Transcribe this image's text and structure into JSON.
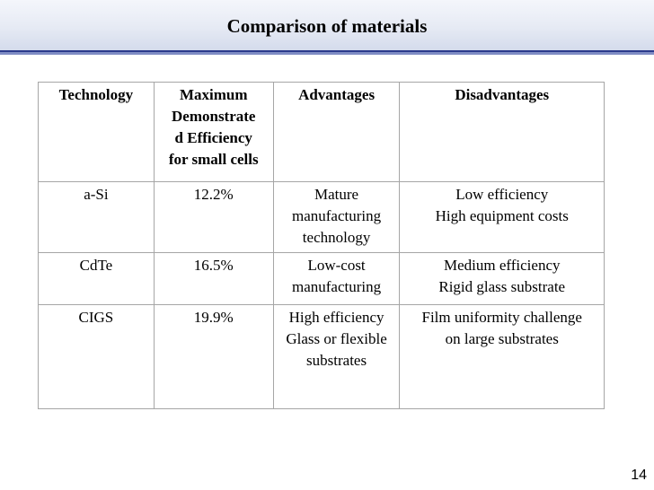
{
  "slide": {
    "title": "Comparison of materials",
    "page_number": "14"
  },
  "table": {
    "headers": [
      "Technology",
      [
        "Maximum",
        "Demonstrate",
        "d Efficiency",
        "for small cells"
      ],
      "Advantages",
      "Disadvantages"
    ],
    "rows": [
      {
        "technology": "a-Si",
        "efficiency": "12.2%",
        "advantages": [
          "Mature",
          "manufacturing",
          "technology"
        ],
        "disadvantages": [
          "Low efficiency",
          "High equipment costs"
        ]
      },
      {
        "technology": "CdTe",
        "efficiency": "16.5%",
        "advantages": [
          "Low-cost",
          "manufacturing"
        ],
        "disadvantages": [
          "Medium efficiency",
          "Rigid glass substrate"
        ]
      },
      {
        "technology": "CIGS",
        "efficiency": "19.9%",
        "advantages": [
          "High efficiency",
          "Glass or flexible",
          "substrates"
        ],
        "disadvantages": [
          "Film uniformity challenge",
          "on large substrates"
        ]
      }
    ]
  }
}
